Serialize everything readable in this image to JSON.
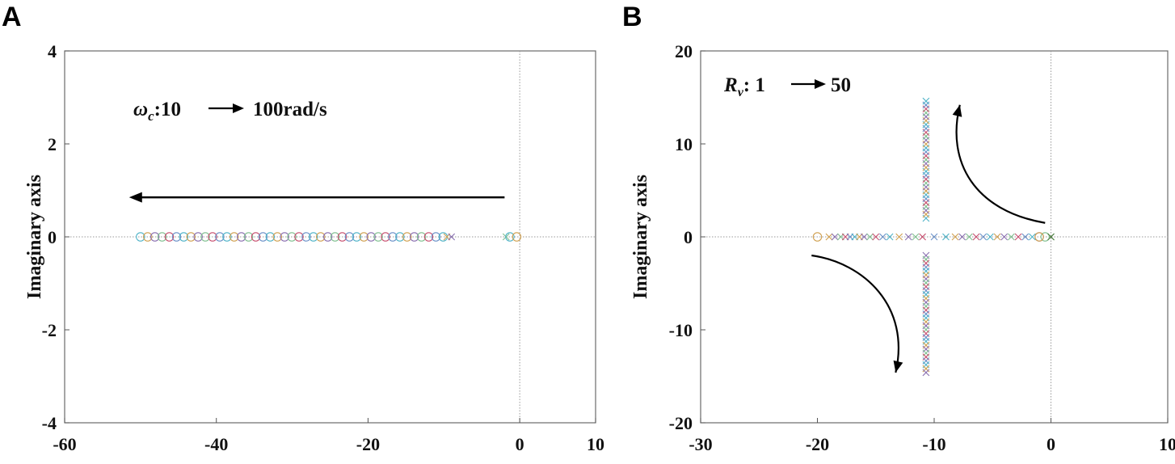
{
  "colors": [
    "#4fb3c8",
    "#d0a050",
    "#8a6fb0",
    "#7fbf8f",
    "#c85070",
    "#6a90c8"
  ],
  "chart_data": [
    {
      "type": "scatter",
      "panel_label": "A",
      "ylabel": "Imaginary axis",
      "xlabel": "",
      "xlim": [
        -60,
        10
      ],
      "ylim": [
        -4,
        4
      ],
      "xticks": [
        "-60",
        "-40",
        "-20",
        "0",
        "10"
      ],
      "xtick_values": [
        -60,
        -40,
        -20,
        0,
        10
      ],
      "yticks": [
        "4",
        "2",
        "0",
        "-2",
        "-4"
      ],
      "ytick_values": [
        4,
        2,
        0,
        -2,
        -4
      ],
      "annotation": {
        "prefix": "ω",
        "sub": "c",
        "from": ":10",
        "to": "100rad/s"
      },
      "arrows": [
        {
          "from": [
            -2,
            0.85
          ],
          "to": [
            -51.5,
            0.85
          ]
        }
      ],
      "zeros": {
        "start": -50,
        "end": -10,
        "step": 0.95,
        "y": 0
      },
      "poles_x": [
        -9.6,
        -9.0,
        -1.8
      ],
      "extra_zeros_x": [
        -1.3,
        -0.4
      ]
    },
    {
      "type": "scatter",
      "panel_label": "B",
      "ylabel": "Imaginary axis",
      "xlabel": "",
      "xlim": [
        -30,
        10
      ],
      "ylim": [
        -20,
        20
      ],
      "xticks": [
        "-30",
        "-20",
        "-10",
        "0",
        "10"
      ],
      "xtick_values": [
        -30,
        -20,
        -10,
        0,
        10
      ],
      "yticks": [
        "20",
        "10",
        "0",
        "-10",
        "-20"
      ],
      "ytick_values": [
        20,
        10,
        0,
        -10,
        -20
      ],
      "annotation": {
        "prefix": "R",
        "sub": "v",
        "from": ": 1",
        "to": "50"
      },
      "vertical_poles": {
        "x": -10.7,
        "ymin": 2,
        "ymax": 14.8,
        "step": 0.42
      },
      "real_axis_markers_x": [
        -20,
        -19,
        -18.5,
        -18,
        -17.6,
        -17.2,
        -16.8,
        -16.4,
        -16,
        -15.5,
        -15,
        -14.4,
        -13.8,
        -13,
        -12.2,
        -11.6,
        -11,
        -10,
        -9,
        -8.2,
        -7.6,
        -7,
        -6.4,
        -5.8,
        -5.2,
        -4.6,
        -4,
        -3.4,
        -2.8,
        -2.2,
        -1.6,
        -1,
        -0.5,
        0
      ],
      "arrows": [
        {
          "path": [
            [
              -0.5,
              1.5
            ],
            [
              -6.5,
              2.8
            ],
            [
              -9,
              8
            ],
            [
              -7.8,
              14.2
            ]
          ],
          "label": "upper"
        },
        {
          "path": [
            [
              -20.5,
              -2
            ],
            [
              -16,
              -2.8
            ],
            [
              -12,
              -7.5
            ],
            [
              -13.3,
              -14.6
            ]
          ],
          "label": "lower"
        }
      ]
    }
  ]
}
